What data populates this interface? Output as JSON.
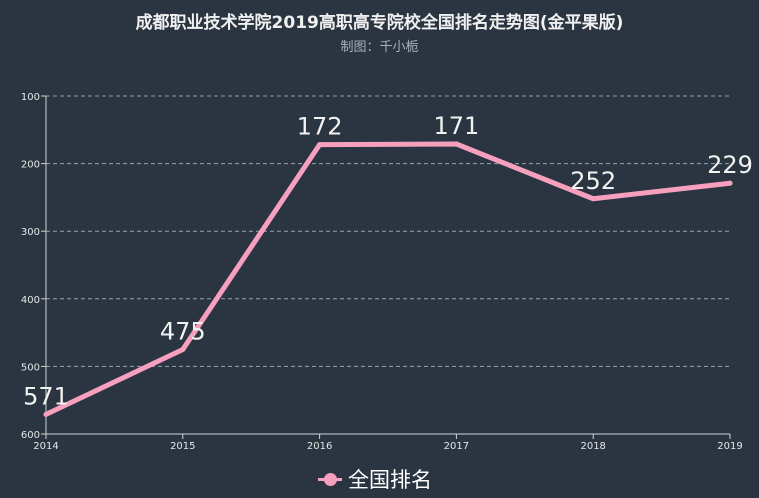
{
  "title": "成都职业技术学院2019高职高专院校全国排名走势图(金平果版)",
  "subtitle": "制图：千小栀",
  "colors": {
    "line": "#f6a0bd",
    "background": "#2b3541",
    "axis": "#cfd3d8",
    "grid": "#9aa3ad"
  },
  "chart_data": {
    "type": "line",
    "x": [
      "2014",
      "2015",
      "2016",
      "2017",
      "2018",
      "2019"
    ],
    "series": [
      {
        "name": "全国排名",
        "values": [
          571,
          475,
          172,
          171,
          252,
          229
        ]
      }
    ],
    "ylim": [
      100,
      600
    ],
    "y_inverted": true,
    "y_ticks": [
      100,
      200,
      300,
      400,
      500,
      600
    ],
    "grid": true,
    "legend_position": "bottom-center"
  }
}
